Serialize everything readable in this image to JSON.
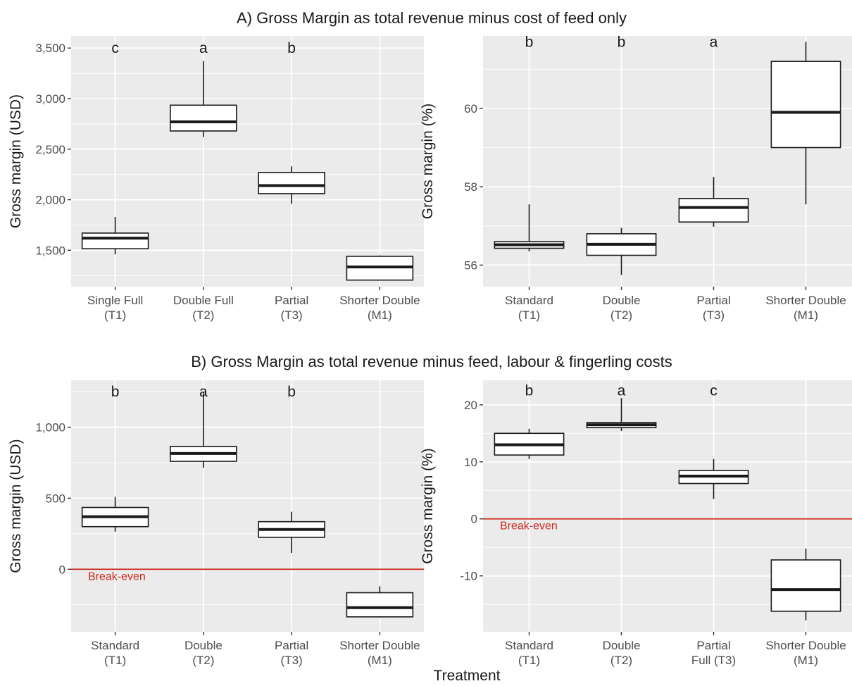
{
  "figure": {
    "section_a_title": "A) Gross Margin as total revenue minus cost of feed only",
    "section_b_title": "B) Gross Margin as total revenue minus feed, labour & fingerling costs",
    "x_axis_title": "Treatment"
  },
  "chart_data": [
    {
      "type": "box",
      "ylabel": "Gross margin (USD)",
      "ylim": [
        1140,
        3620
      ],
      "yticks": [
        1500,
        2000,
        2500,
        3000,
        3500
      ],
      "ytick_labels": [
        "1,500",
        "2,000",
        "2,500",
        "3,000",
        "3,500"
      ],
      "categories": [
        [
          "Single Full",
          "(T1)"
        ],
        [
          "Double Full",
          "(T2)"
        ],
        [
          "Partial",
          "(T3)"
        ],
        [
          "Shorter Double",
          "(M1)"
        ]
      ],
      "letters": [
        "c",
        "a",
        "b",
        ""
      ],
      "letter_y": 3500,
      "boxes": [
        {
          "min": 1460,
          "q1": 1515,
          "median": 1620,
          "q3": 1670,
          "max": 1830
        },
        {
          "min": 2620,
          "q1": 2680,
          "median": 2770,
          "q3": 2935,
          "max": 3370
        },
        {
          "min": 1960,
          "q1": 2060,
          "median": 2140,
          "q3": 2270,
          "max": 2330
        },
        {
          "min": 1205,
          "q1": 1205,
          "median": 1335,
          "q3": 1440,
          "max": 1450
        }
      ]
    },
    {
      "type": "box",
      "ylabel": "Gross margin (%)",
      "ylim": [
        55.45,
        61.85
      ],
      "yticks": [
        56,
        58,
        60
      ],
      "ytick_labels": [
        "56",
        "58",
        "60"
      ],
      "categories": [
        [
          "Standard",
          "(T1)"
        ],
        [
          "Double",
          "(T2)"
        ],
        [
          "Partial",
          "(T3)"
        ],
        [
          "Shorter Double",
          "(M1)"
        ]
      ],
      "letters": [
        "b",
        "b",
        "a",
        ""
      ],
      "letter_y": 61.7,
      "boxes": [
        {
          "min": 56.35,
          "q1": 56.43,
          "median": 56.52,
          "q3": 56.6,
          "max": 57.55
        },
        {
          "min": 55.75,
          "q1": 56.25,
          "median": 56.53,
          "q3": 56.8,
          "max": 56.95
        },
        {
          "min": 56.98,
          "q1": 57.1,
          "median": 57.47,
          "q3": 57.7,
          "max": 58.25
        },
        {
          "min": 57.55,
          "q1": 59.0,
          "median": 59.9,
          "q3": 61.2,
          "max": 61.7
        }
      ]
    },
    {
      "type": "box",
      "ylabel": "Gross margin (USD)",
      "ylim": [
        -440,
        1330
      ],
      "yticks": [
        0,
        500,
        1000
      ],
      "ytick_labels": [
        "0",
        "500",
        "1,000"
      ],
      "categories": [
        [
          "Standard",
          "(T1)"
        ],
        [
          "Double",
          "(T2)"
        ],
        [
          "Partial",
          "(T3)"
        ],
        [
          "Shorter Double",
          "(M1)"
        ]
      ],
      "letters": [
        "b",
        "a",
        "b",
        ""
      ],
      "letter_y": 1250,
      "reference_line": {
        "y": 0,
        "label": "Break-even",
        "color": "#cc2a1f"
      },
      "boxes": [
        {
          "min": 265,
          "q1": 300,
          "median": 370,
          "q3": 435,
          "max": 510
        },
        {
          "min": 715,
          "q1": 760,
          "median": 815,
          "q3": 865,
          "max": 1250
        },
        {
          "min": 115,
          "q1": 225,
          "median": 280,
          "q3": 335,
          "max": 405
        },
        {
          "min": -340,
          "q1": -335,
          "median": -270,
          "q3": -165,
          "max": -120
        }
      ]
    },
    {
      "type": "box",
      "ylabel": "Gross margin (%)",
      "ylim": [
        -19.8,
        24.3
      ],
      "yticks": [
        -10,
        0,
        10,
        20
      ],
      "ytick_labels": [
        "-10",
        "0",
        "10",
        "20"
      ],
      "categories": [
        [
          "Standard",
          "(T1)"
        ],
        [
          "Double",
          "(T2)"
        ],
        [
          "Partial",
          "Full (T3)"
        ],
        [
          "Shorter Double",
          "(M1)"
        ]
      ],
      "letters": [
        "b",
        "a",
        "c",
        ""
      ],
      "letter_y": 22.5,
      "reference_line": {
        "y": 0,
        "label": "Break-even",
        "color": "#cc2a1f"
      },
      "boxes": [
        {
          "min": 10.5,
          "q1": 11.2,
          "median": 13.0,
          "q3": 15.0,
          "max": 15.8
        },
        {
          "min": 15.4,
          "q1": 16.0,
          "median": 16.5,
          "q3": 16.9,
          "max": 21.2
        },
        {
          "min": 3.5,
          "q1": 6.2,
          "median": 7.5,
          "q3": 8.5,
          "max": 10.5
        },
        {
          "min": -17.8,
          "q1": -16.2,
          "median": -12.4,
          "q3": -7.2,
          "max": -5.2
        }
      ]
    }
  ]
}
